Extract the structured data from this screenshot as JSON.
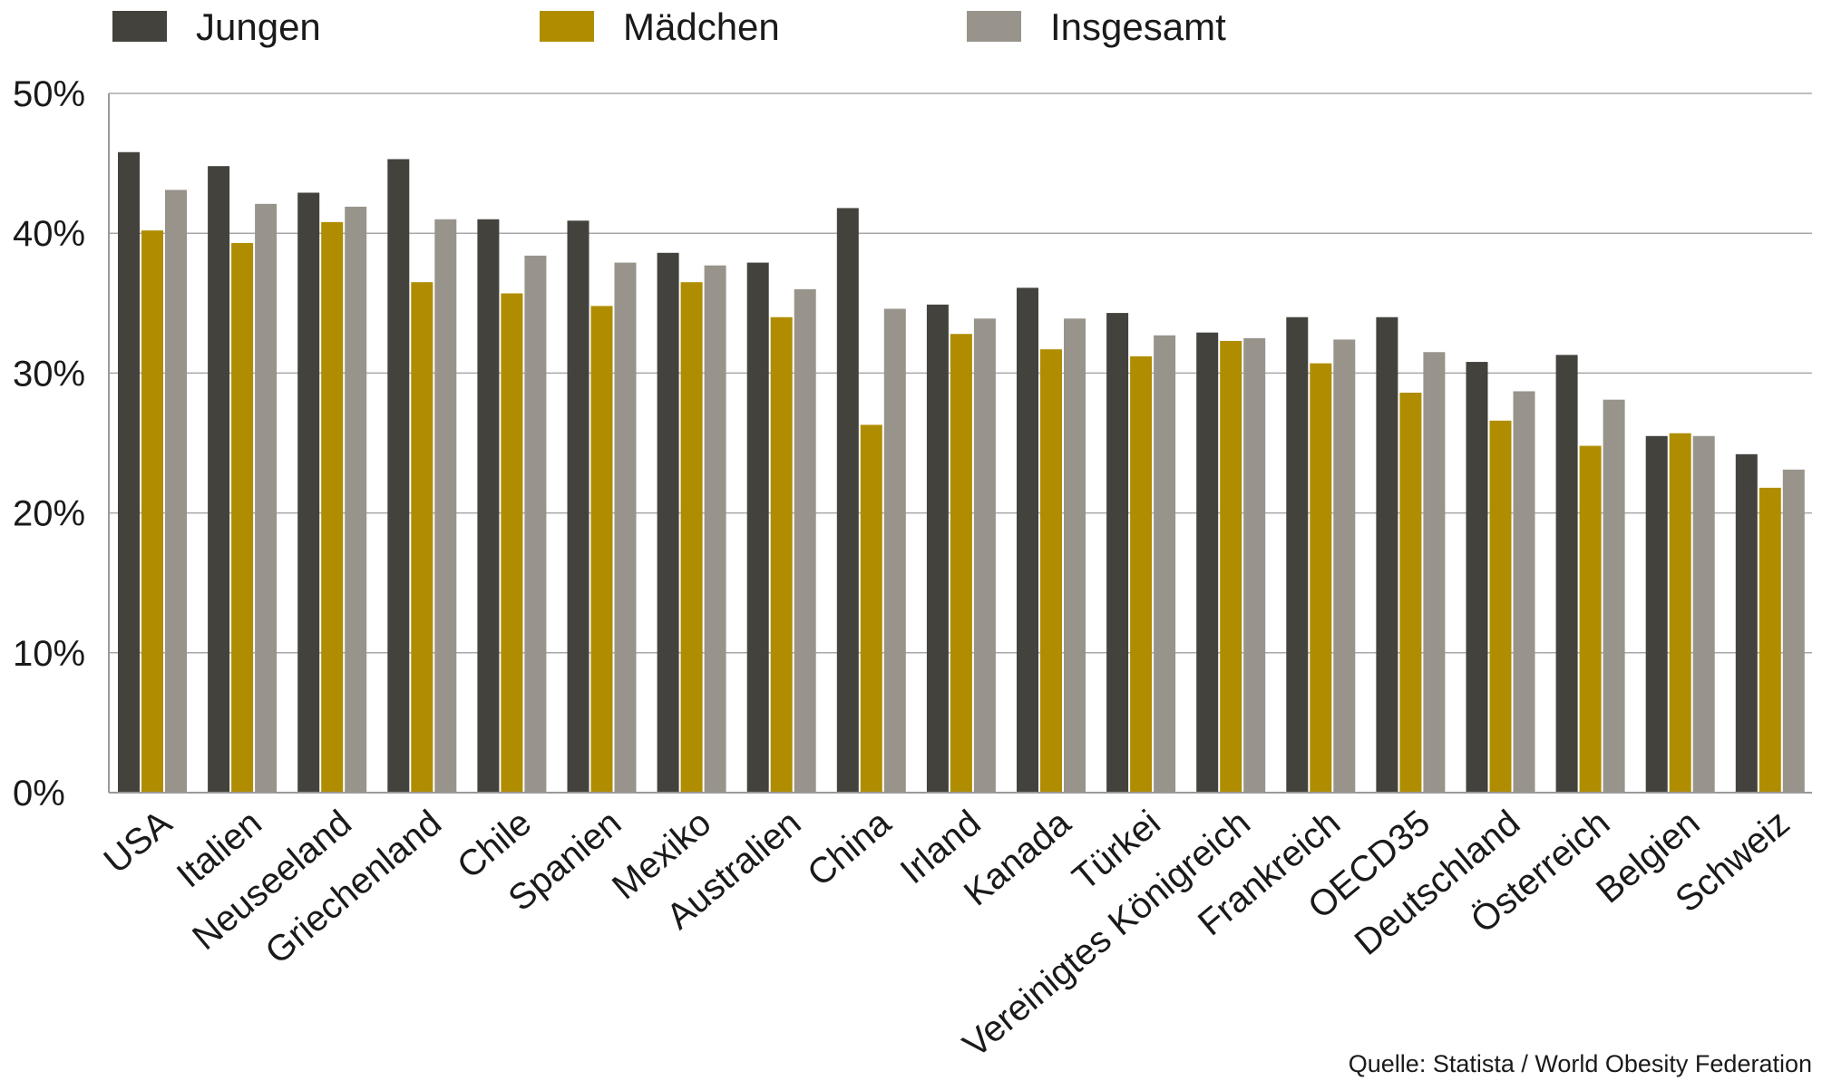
{
  "chart_data": {
    "type": "bar",
    "categories": [
      "USA",
      "Italien",
      "Neuseeland",
      "Griechenland",
      "Chile",
      "Spanien",
      "Mexiko",
      "Australien",
      "China",
      "Irland",
      "Kanada",
      "Türkei",
      "Vereinigtes Königreich",
      "Frankreich",
      "OECD35",
      "Deutschland",
      "Österreich",
      "Belgien",
      "Schweiz"
    ],
    "series": [
      {
        "name": "Jungen",
        "color": "#44423d",
        "values": [
          45.8,
          44.8,
          42.9,
          45.3,
          41.0,
          40.9,
          38.6,
          37.9,
          41.8,
          34.9,
          36.1,
          34.3,
          32.9,
          34.0,
          34.0,
          30.8,
          31.3,
          25.5,
          24.2
        ]
      },
      {
        "name": "Mädchen",
        "color": "#b08d00",
        "values": [
          40.2,
          39.3,
          40.8,
          36.5,
          35.7,
          34.8,
          36.5,
          34.0,
          26.3,
          32.8,
          31.7,
          31.2,
          32.3,
          30.7,
          28.6,
          26.6,
          24.8,
          25.7,
          21.8
        ]
      },
      {
        "name": "Insgesamt",
        "color": "#98948b",
        "values": [
          43.1,
          42.1,
          41.9,
          41.0,
          38.4,
          37.9,
          37.7,
          36.0,
          34.6,
          33.9,
          33.9,
          32.7,
          32.5,
          32.4,
          31.5,
          28.7,
          28.1,
          25.5,
          23.1
        ]
      }
    ],
    "y_ticks": [
      "0%",
      "10%",
      "20%",
      "30%",
      "40%",
      "50%"
    ],
    "ylim": [
      0,
      50
    ],
    "grid": true,
    "legend_position": "top-left",
    "source": "Quelle: Statista / World Obesity Federation"
  }
}
